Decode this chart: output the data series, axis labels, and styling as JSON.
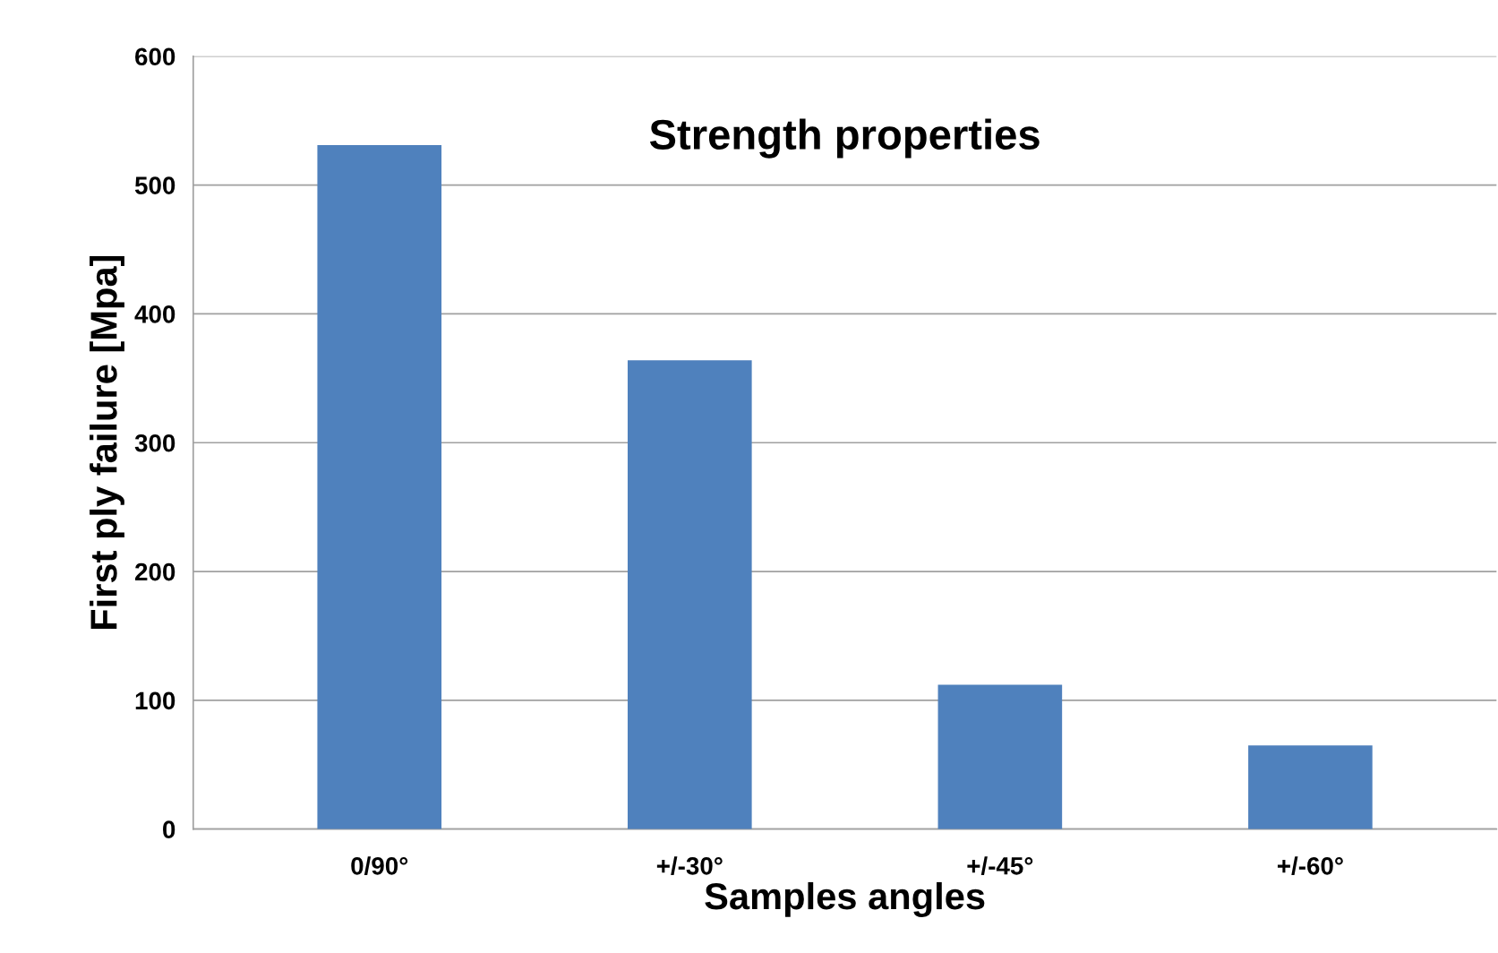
{
  "chart_data": {
    "type": "bar",
    "title": "Strength properties",
    "xlabel": "Samples angles",
    "ylabel": "First ply failure [Mpa]",
    "categories": [
      "0/90°",
      "+/-30°",
      "+/-45°",
      "+/-60°"
    ],
    "values": [
      531,
      364,
      112,
      65
    ],
    "color": "#4f81bd",
    "ylim": [
      0,
      600
    ],
    "yticks": [
      0,
      100,
      200,
      300,
      400,
      500,
      600
    ],
    "grid": "y",
    "legend": false
  }
}
